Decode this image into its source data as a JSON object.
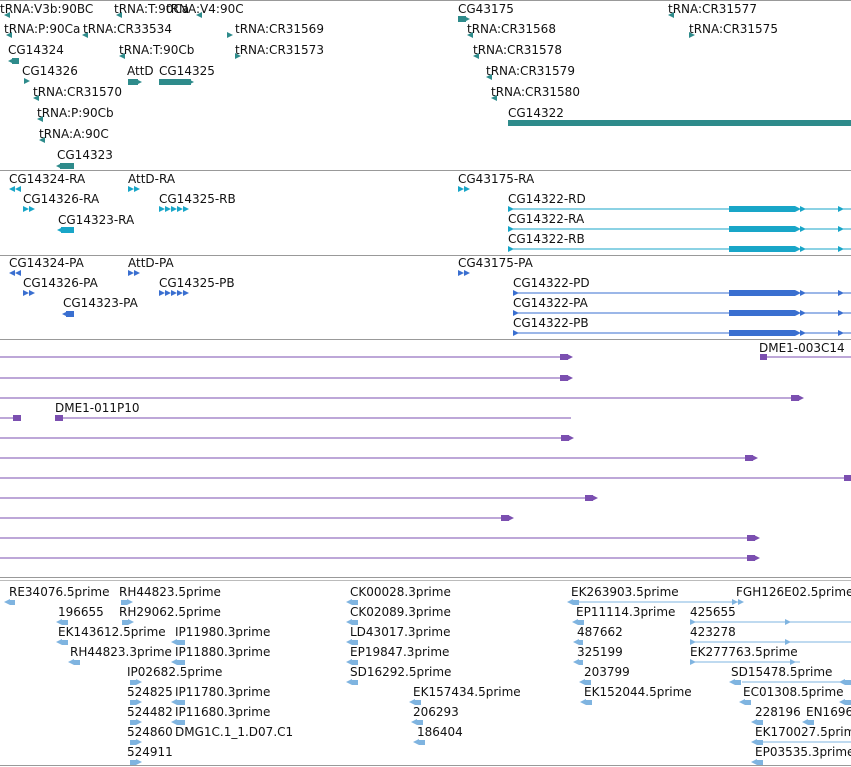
{
  "colors": {
    "trna": "#2e8b8b",
    "gene": "#2e8b8b",
    "transcript_ra": "#19a6c8",
    "protein_pa": "#3a6fd0",
    "est": "#7b4fb0",
    "cdna": "#7fb4e0",
    "separator": "#9a9a9a"
  },
  "tracks": {
    "genes": [
      {
        "label": "tRNA:V3b:90BC",
        "icon": "left-arrow"
      },
      {
        "label": "tRNA:T:90Ca",
        "icon": "left-arrow"
      },
      {
        "label": "tRNA:V4:90C",
        "icon": "left-arrow"
      },
      {
        "label": "tRNA:P:90Ca",
        "icon": "left-arrow"
      },
      {
        "label": "tRNA:CR33534",
        "icon": "left-arrow"
      },
      {
        "label": "tRNA:CR31569",
        "icon": "right-arrow"
      },
      {
        "label": "CG14324",
        "icon": "left-arrow"
      },
      {
        "label": "tRNA:T:90Cb",
        "icon": "left-arrow"
      },
      {
        "label": "tRNA:CR31573",
        "icon": "right-arrow"
      },
      {
        "label": "CG14326",
        "icon": "right-arrow"
      },
      {
        "label": "AttD",
        "icon": "right-arrow"
      },
      {
        "label": "CG14325",
        "icon": "right-arrow"
      },
      {
        "label": "tRNA:CR31570",
        "icon": "left-arrow"
      },
      {
        "label": "tRNA:P:90Cb",
        "icon": "left-arrow"
      },
      {
        "label": "tRNA:A:90C",
        "icon": "left-arrow"
      },
      {
        "label": "CG14323",
        "icon": "left-arrow"
      },
      {
        "label": "CG43175",
        "icon": "right-arrow"
      },
      {
        "label": "tRNA:CR31568",
        "icon": "left-arrow"
      },
      {
        "label": "tRNA:CR31578",
        "icon": "left-arrow"
      },
      {
        "label": "tRNA:CR31579",
        "icon": "left-arrow"
      },
      {
        "label": "tRNA:CR31580",
        "icon": "left-arrow"
      },
      {
        "label": "CG14322",
        "icon": "right-arrow"
      },
      {
        "label": "tRNA:CR31577",
        "icon": "left-arrow"
      },
      {
        "label": "tRNA:CR31575",
        "icon": "right-arrow"
      }
    ],
    "transcripts": [
      {
        "label": "CG14324-RA"
      },
      {
        "label": "AttD-RA"
      },
      {
        "label": "CG14326-RA"
      },
      {
        "label": "CG14325-RB"
      },
      {
        "label": "CG14323-RA"
      },
      {
        "label": "CG43175-RA"
      },
      {
        "label": "CG14322-RD"
      },
      {
        "label": "CG14322-RA"
      },
      {
        "label": "CG14322-RB"
      }
    ],
    "proteins": [
      {
        "label": "CG14324-PA"
      },
      {
        "label": "AttD-PA"
      },
      {
        "label": "CG14326-PA"
      },
      {
        "label": "CG14325-PB"
      },
      {
        "label": "CG14323-PA"
      },
      {
        "label": "CG43175-PA"
      },
      {
        "label": "CG14322-PD"
      },
      {
        "label": "CG14322-PA"
      },
      {
        "label": "CG14322-PB"
      }
    ],
    "ests": [
      {
        "label": "DME1-003C14"
      },
      {
        "label": "DME1-011P10"
      }
    ],
    "cdnas": [
      {
        "label": "RE34076.5prime"
      },
      {
        "label": "RH44823.5prime"
      },
      {
        "label": "196655"
      },
      {
        "label": "RH29062.5prime"
      },
      {
        "label": "EK143612.5prime"
      },
      {
        "label": "IP11980.3prime"
      },
      {
        "label": "RH44823.3prime"
      },
      {
        "label": "IP11880.3prime"
      },
      {
        "label": "IP02682.5prime"
      },
      {
        "label": "524825"
      },
      {
        "label": "IP11780.3prime"
      },
      {
        "label": "524482"
      },
      {
        "label": "IP11680.3prime"
      },
      {
        "label": "524860"
      },
      {
        "label": "DMG1C.1_1.D07.C1"
      },
      {
        "label": "524911"
      },
      {
        "label": "CK00028.3prime"
      },
      {
        "label": "CK02089.3prime"
      },
      {
        "label": "LD43017.3prime"
      },
      {
        "label": "EP19847.3prime"
      },
      {
        "label": "SD16292.5prime"
      },
      {
        "label": "EK157434.5prime"
      },
      {
        "label": "206293"
      },
      {
        "label": "186404"
      },
      {
        "label": "EK263903.5prime"
      },
      {
        "label": "EP11114.3prime"
      },
      {
        "label": "487662"
      },
      {
        "label": "325199"
      },
      {
        "label": "203799"
      },
      {
        "label": "EK152044.5prime"
      },
      {
        "label": "FGH126E02.5prime"
      },
      {
        "label": "425655"
      },
      {
        "label": "423278"
      },
      {
        "label": "EK277763.5prime"
      },
      {
        "label": "SD15478.5prime"
      },
      {
        "label": "EC01308.5prime"
      },
      {
        "label": "228196"
      },
      {
        "label": "EN1696"
      },
      {
        "label": "EK170027.5prime"
      },
      {
        "label": "EP03535.3prime"
      }
    ]
  }
}
